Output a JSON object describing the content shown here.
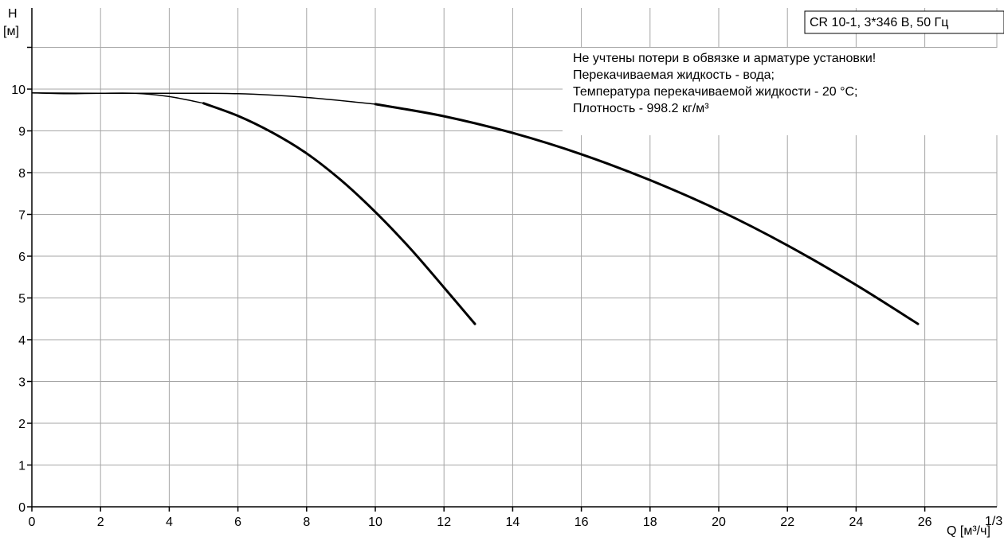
{
  "chart_data": {
    "type": "line",
    "title": "CR 10-1, 3*346 В, 50 Гц",
    "ylabel": [
      "H",
      "[м]"
    ],
    "xlabel": "Q [м³/ч]",
    "x_corner_label": "1/3",
    "xlim": [
      0,
      28
    ],
    "ylim": [
      0,
      11
    ],
    "x_ticks": [
      0,
      2,
      4,
      6,
      8,
      10,
      12,
      14,
      16,
      18,
      20,
      22,
      24,
      26
    ],
    "y_ticks": [
      0,
      1,
      2,
      3,
      4,
      5,
      6,
      7,
      8,
      9,
      10
    ],
    "grid": true,
    "notes": [
      "Не учтены потери в обвязке и арматуре установки!",
      "Перекачиваемая жидкость - вода;",
      "Температура перекачиваемой жидкости - 20 °C;",
      "Плотность - 998.2 кг/м³"
    ],
    "series": [
      {
        "x": [
          0,
          1,
          2,
          3,
          4,
          5,
          6,
          7,
          8,
          9,
          10,
          11,
          12,
          12.9
        ],
        "y": [
          9.91,
          9.89,
          9.9,
          9.9,
          9.82,
          9.66,
          9.36,
          8.96,
          8.46,
          7.82,
          7.06,
          6.2,
          5.25,
          4.38
        ],
        "thin_until_x": 5
      },
      {
        "x": [
          0,
          2,
          4,
          6,
          8,
          10,
          12,
          14,
          16,
          18,
          20,
          22,
          24,
          25.8
        ],
        "y": [
          9.91,
          9.9,
          9.9,
          9.89,
          9.8,
          9.64,
          9.35,
          8.95,
          8.44,
          7.82,
          7.1,
          6.26,
          5.31,
          4.38
        ],
        "thin_until_x": 10
      }
    ]
  }
}
